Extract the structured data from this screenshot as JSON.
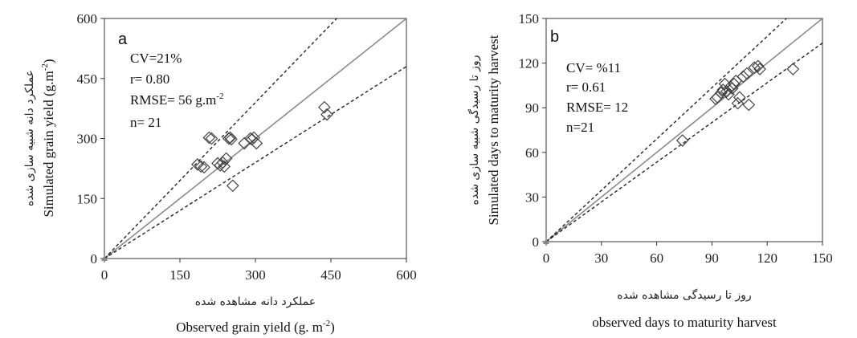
{
  "chart_data": [
    {
      "type": "scatter",
      "panel_label": "a",
      "xlabel_fa": "عملکرد دانه مشاهده شده",
      "xlabel_en": "Observed grain yield (g. m",
      "xlabel_en_sup": "-2",
      "xlabel_en_end": ")",
      "ylabel_fa": "عملکرد دانه شبیه سازی شده",
      "ylabel_en": "Simulated grain yield (g.m",
      "ylabel_en_sup": "-2",
      "ylabel_en_end": ")",
      "stats": {
        "cv": "CV=21%",
        "r": "r= 0.80",
        "rmse": "RMSE= 56 g.m",
        "rmse_sup": "-2",
        "n": "n= 21"
      },
      "xlim": [
        0,
        600
      ],
      "ylim": [
        0,
        600
      ],
      "xticks": [
        "0",
        "150",
        "300",
        "450",
        "600"
      ],
      "yticks": [
        "0",
        "150",
        "300",
        "450",
        "600"
      ],
      "one_to_one_line": true,
      "bound_lines_slopes": [
        1.3,
        0.8
      ],
      "marker": "diamond",
      "points": [
        [
          185,
          235
        ],
        [
          192,
          230
        ],
        [
          198,
          228
        ],
        [
          208,
          302
        ],
        [
          213,
          300
        ],
        [
          225,
          238
        ],
        [
          230,
          233
        ],
        [
          235,
          240
        ],
        [
          242,
          250
        ],
        [
          247,
          300
        ],
        [
          250,
          302
        ],
        [
          252,
          298
        ],
        [
          255,
          182
        ],
        [
          278,
          288
        ],
        [
          290,
          300
        ],
        [
          293,
          298
        ],
        [
          297,
          302
        ],
        [
          302,
          288
        ],
        [
          437,
          378
        ],
        [
          442,
          360
        ],
        [
          238,
          230
        ]
      ]
    },
    {
      "type": "scatter",
      "panel_label": "b",
      "xlabel_fa": "روز تا رسیدگی مشاهده شده",
      "xlabel_en": "observed days to maturity harvest",
      "ylabel_fa": "روز تا رسیدگی شبیه سازی شده",
      "ylabel_en": "Simulated days to maturity harvest",
      "stats": {
        "cv": "CV= %11",
        "r": "r= 0.61",
        "rmse": "RMSE= 12",
        "n": "n=21"
      },
      "xlim": [
        0,
        150
      ],
      "ylim": [
        0,
        150
      ],
      "xticks": [
        "0",
        "30",
        "60",
        "90",
        "120",
        "150"
      ],
      "yticks": [
        "0",
        "30",
        "60",
        "90",
        "120",
        "150"
      ],
      "one_to_one_line": true,
      "bound_lines_slopes": [
        1.15,
        0.89
      ],
      "marker": "diamond",
      "points": [
        [
          74,
          68
        ],
        [
          92,
          96
        ],
        [
          93,
          97
        ],
        [
          95,
          100
        ],
        [
          96,
          102
        ],
        [
          97,
          106
        ],
        [
          98,
          101
        ],
        [
          100,
          104
        ],
        [
          101,
          103
        ],
        [
          102,
          106
        ],
        [
          104,
          93
        ],
        [
          105,
          97
        ],
        [
          107,
          111
        ],
        [
          109,
          113
        ],
        [
          110,
          92
        ],
        [
          113,
          117
        ],
        [
          115,
          118
        ],
        [
          116,
          116
        ],
        [
          134,
          116
        ],
        [
          99,
          99
        ],
        [
          103,
          108
        ]
      ]
    }
  ]
}
